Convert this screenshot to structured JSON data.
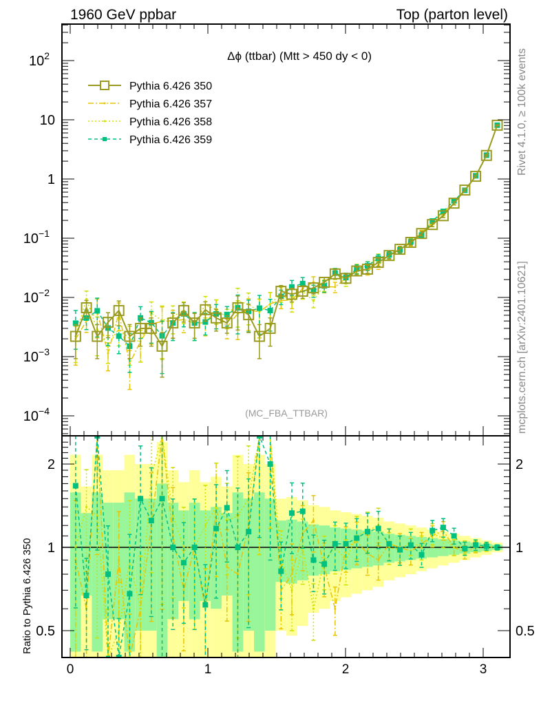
{
  "header": {
    "left": "1960 GeV ppbar",
    "right": "Top (parton level)",
    "side_top": "Rivet 4.1.0, ≥ 100k events",
    "side_bottom": "mcplots.cern.ch [arXiv:2401.10621]",
    "analysis": "(MC_FBA_TTBAR)"
  },
  "chart_data": {
    "type": "line",
    "title": "Δϕ (ttbar) (Mtt > 450 dy < 0)",
    "xlabel": "",
    "ylabel": "",
    "ratio_ylabel": "Ratio to Pythia 6.426 350",
    "xlim": [
      -0.06,
      3.195
    ],
    "ylim": [
      4.6e-05,
      413
    ],
    "yscale": "log",
    "ratio_ylim": [
      0.4,
      2.53
    ],
    "ratio_yscale": "log",
    "x_ticks": [
      "0",
      "1",
      "2",
      "3"
    ],
    "y_ticks": [
      {
        "base": "10",
        "exp": "2",
        "value": 100
      },
      {
        "base": "10",
        "exp": "",
        "value": 10
      },
      {
        "base": "1",
        "exp": "",
        "value": 1
      },
      {
        "base": "10",
        "exp": "−1",
        "value": 0.1
      },
      {
        "base": "10",
        "exp": "−2",
        "value": 0.01
      },
      {
        "base": "10",
        "exp": "−3",
        "value": 0.001
      },
      {
        "base": "10",
        "exp": "−4",
        "value": 0.0001
      }
    ],
    "ratio_ticks": [
      {
        "label": "2",
        "value": 2
      },
      {
        "label": "1",
        "value": 1
      },
      {
        "label": "0.5",
        "value": 0.5
      }
    ],
    "bins": {
      "min": 0,
      "max": 3.14159,
      "count": 40
    },
    "legend_position": "top-left",
    "reference": {
      "name": "Pythia 6.426 350",
      "color": "#9a9a1f",
      "values": [
        0.0022,
        0.0067,
        0.0022,
        0.0038,
        0.006,
        0.0022,
        0.003,
        0.003,
        0.0015,
        0.0037,
        0.006,
        0.0037,
        0.0062,
        0.0045,
        0.0037,
        0.0067,
        0.0051,
        0.0022,
        0.003,
        0.0127,
        0.0113,
        0.0127,
        0.0145,
        0.018,
        0.025,
        0.021,
        0.028,
        0.03,
        0.039,
        0.051,
        0.065,
        0.085,
        0.12,
        0.17,
        0.24,
        0.39,
        0.65,
        1.11,
        2.5,
        8.1
      ],
      "rel_err": [
        0.58,
        0.33,
        0.58,
        0.45,
        0.45,
        0.58,
        0.5,
        0.5,
        0.7,
        0.45,
        0.36,
        0.45,
        0.36,
        0.4,
        0.33,
        0.58,
        0.5,
        0.58,
        0.5,
        0.25,
        0.26,
        0.24,
        0.21,
        0.2,
        0.18,
        0.17,
        0.16,
        0.15,
        0.14,
        0.12,
        0.11,
        0.1,
        0.09,
        0.08,
        0.07,
        0.06,
        0.05,
        0.04,
        0.03,
        0.02
      ]
    },
    "band_colors": {
      "one_sigma": "#99f599",
      "two_sigma": "#ffff99"
    },
    "series": [
      {
        "name": "Pythia 6.426 357",
        "color": "#e8c400",
        "style": "dashdot",
        "ratio": [
          0.9,
          0.6,
          2.6,
          0.3,
          0.9,
          0.35,
          0.6,
          1.2,
          2.6,
          1.1,
          0.7,
          1.0,
          0.6,
          1.4,
          0.85,
          0.8,
          1.2,
          2.6,
          2.6,
          0.7,
          0.8,
          1.12,
          1.25,
          0.85,
          0.6,
          1.0,
          1.05,
          0.95,
          0.9,
          1.03,
          1.0,
          0.97,
          1.03,
          1.1,
          1.15,
          1.0,
          0.96,
          1.0,
          1.01,
          1.0
        ]
      },
      {
        "name": "Pythia 6.426 358",
        "color": "#cde000",
        "style": "dotted",
        "ratio": [
          1.0,
          1.4,
          1.3,
          0.4,
          0.5,
          0.9,
          0.6,
          1.8,
          2.7,
          1.3,
          1.0,
          1.0,
          1.2,
          1.4,
          1.25,
          1.3,
          1.5,
          2.6,
          2.6,
          0.9,
          0.7,
          1.0,
          0.6,
          0.9,
          1.0,
          0.9,
          1.1,
          1.15,
          1.2,
          1.0,
          0.98,
          1.05,
          1.0,
          1.12,
          1.08,
          1.0,
          1.0,
          1.01,
          1.0,
          1.0
        ]
      },
      {
        "name": "Pythia 6.426 359",
        "color": "#00c080",
        "style": "dashed",
        "ratio": [
          1.67,
          0.67,
          2.7,
          0.8,
          0.37,
          0.68,
          1.5,
          1.25,
          1.5,
          1.0,
          0.88,
          1.0,
          0.62,
          1.17,
          1.39,
          1.0,
          1.14,
          3.0,
          2.0,
          0.82,
          1.33,
          1.35,
          0.9,
          0.87,
          1.03,
          1.03,
          1.08,
          1.14,
          1.17,
          1.03,
          0.98,
          1.02,
          0.94,
          1.15,
          1.18,
          1.1,
          0.99,
          1.02,
          1.01,
          1.0
        ]
      }
    ]
  }
}
